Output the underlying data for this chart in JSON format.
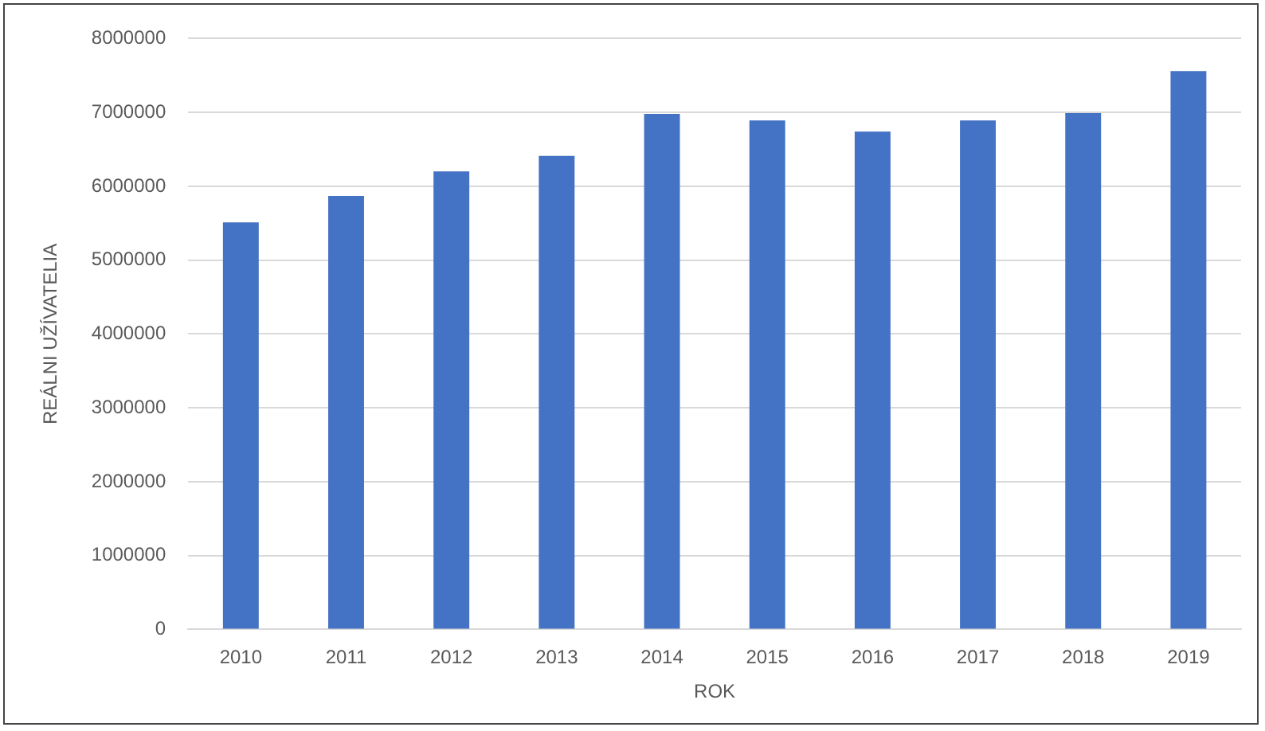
{
  "chart_data": {
    "type": "bar",
    "xlabel": "ROK",
    "ylabel": "REÁLNI UŽÍVATELIA",
    "categories": [
      "2010",
      "2011",
      "2012",
      "2013",
      "2014",
      "2015",
      "2016",
      "2017",
      "2018",
      "2019"
    ],
    "values": [
      5510000,
      5870000,
      6200000,
      6410000,
      6980000,
      6890000,
      6740000,
      6890000,
      6990000,
      7560000
    ],
    "color": "#4472c4",
    "ylim": [
      0,
      8000000
    ],
    "yticks": [
      0,
      1000000,
      2000000,
      3000000,
      4000000,
      5000000,
      6000000,
      7000000,
      8000000
    ],
    "grid": "y",
    "legend": false
  }
}
